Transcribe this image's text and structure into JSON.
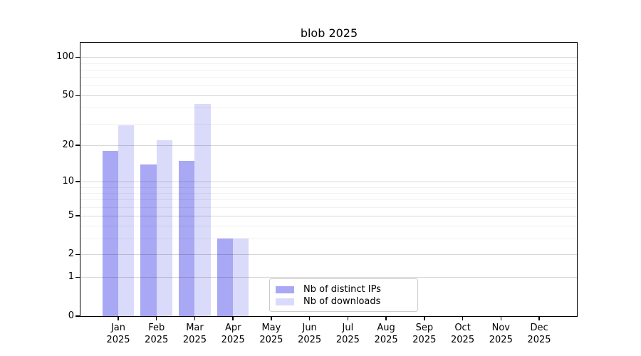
{
  "chart_data": {
    "type": "bar",
    "title": "blob 2025",
    "categories": [
      "Jan 2025",
      "Feb 2025",
      "Mar 2025",
      "Apr 2025",
      "May 2025",
      "Jun 2025",
      "Jul 2025",
      "Aug 2025",
      "Sep 2025",
      "Oct 2025",
      "Nov 2025",
      "Dec 2025"
    ],
    "series": [
      {
        "name": "Nb of distinct IPs",
        "color": "#a8a8f4",
        "values": [
          18,
          14,
          15,
          3,
          0,
          0,
          0,
          0,
          0,
          0,
          0,
          0
        ]
      },
      {
        "name": "Nb of downloads",
        "color": "#dadafa",
        "values": [
          29,
          22,
          43,
          3,
          0,
          0,
          0,
          0,
          0,
          0,
          0,
          0
        ]
      }
    ],
    "yscale": "log1p",
    "ylim": [
      0,
      130
    ],
    "yticks_major": [
      0,
      1,
      2,
      5,
      10,
      20,
      50,
      100
    ],
    "yticks_minor": [
      3,
      4,
      6,
      7,
      8,
      9,
      30,
      40,
      60,
      70,
      80,
      90
    ],
    "grid": "on",
    "legend_position": "lower center",
    "colors": {
      "grid_major": "#d6d6d6",
      "grid_minor": "#f1f1f1",
      "spine": "#000000",
      "legend_border": "#cccccc"
    }
  }
}
